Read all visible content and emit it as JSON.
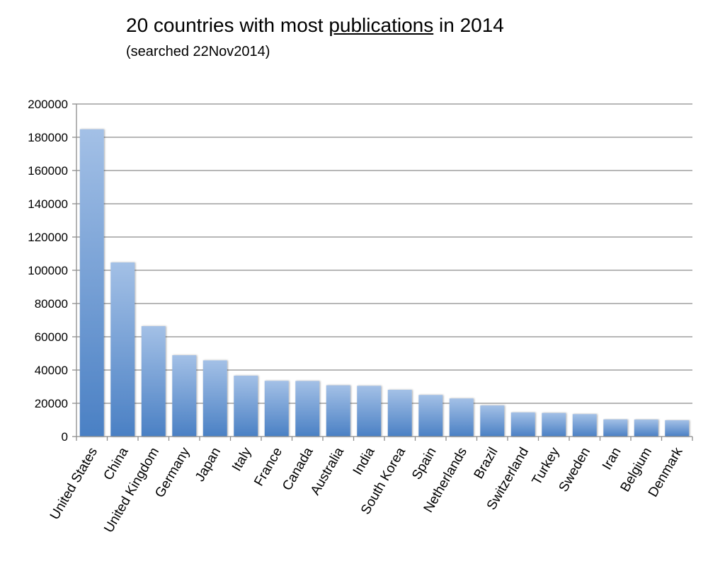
{
  "chart_data": {
    "type": "bar",
    "title_parts": [
      "20 countries with most ",
      "publications",
      " in 2014"
    ],
    "title": "20 countries with most publications in 2014",
    "subtitle": "(searched 22Nov2014)",
    "xlabel": "",
    "ylabel": "",
    "ylim": [
      0,
      200000
    ],
    "yticks": [
      0,
      20000,
      40000,
      60000,
      80000,
      100000,
      120000,
      140000,
      160000,
      180000,
      200000
    ],
    "grid": true,
    "legend": "none",
    "categories": [
      "United States",
      "China",
      "United Kingdom",
      "Germany",
      "Japan",
      "Italy",
      "France",
      "Canada",
      "Australia",
      "India",
      "South Korea",
      "Spain",
      "Netherlands",
      "Brazil",
      "Switzerland",
      "Turkey",
      "Sweden",
      "Iran",
      "Belgium",
      "Denmark"
    ],
    "values": [
      184800,
      104700,
      66400,
      48900,
      45800,
      36600,
      33500,
      33400,
      30800,
      30500,
      28100,
      25000,
      22900,
      18700,
      14500,
      14200,
      13500,
      10300,
      10200,
      9800
    ],
    "colors": {
      "bar_top": "#a3c0e6",
      "bar_bottom": "#4a80c4",
      "grid": "#8c8c8c",
      "axis": "#8c8c8c"
    }
  }
}
